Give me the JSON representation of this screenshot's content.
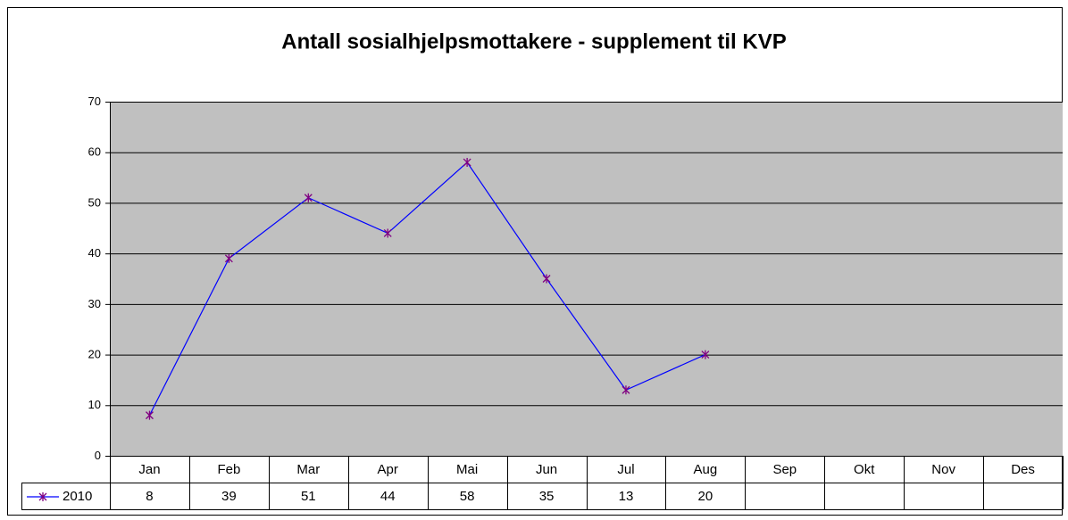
{
  "chart_data": {
    "type": "line",
    "title": "Antall sosialhjelpsmottakere - supplement til KVP",
    "categories": [
      "Jan",
      "Feb",
      "Mar",
      "Apr",
      "Mai",
      "Jun",
      "Jul",
      "Aug",
      "Sep",
      "Okt",
      "Nov",
      "Des"
    ],
    "series": [
      {
        "name": "2010",
        "color": "#0000ff",
        "marker_color": "#800080",
        "values": [
          8,
          39,
          51,
          44,
          58,
          35,
          13,
          20,
          null,
          null,
          null,
          null
        ]
      }
    ],
    "ylim": [
      0,
      70
    ],
    "yticks": [
      0,
      10,
      20,
      30,
      40,
      50,
      60,
      70
    ],
    "grid": true,
    "plot_background": "#c0c0c0",
    "data_table": true
  }
}
